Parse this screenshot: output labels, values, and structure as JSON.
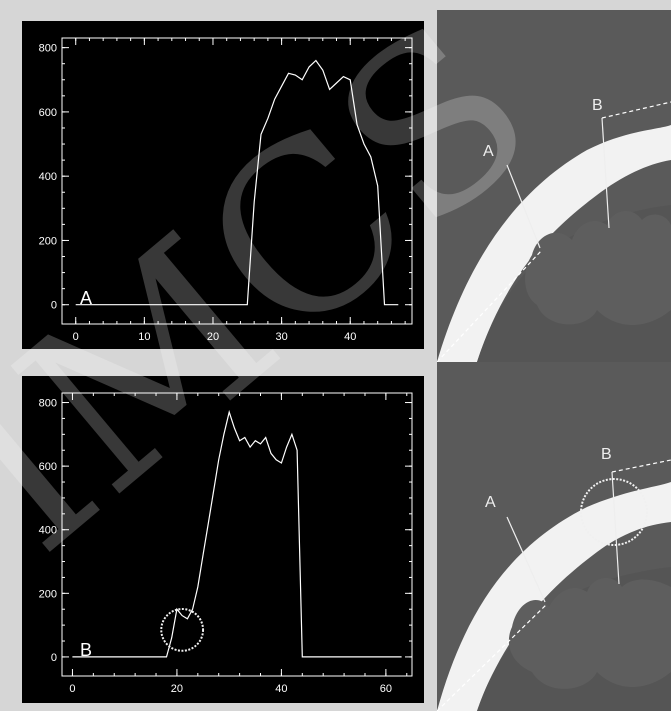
{
  "chart_data": [
    {
      "type": "line",
      "panel_label": "A",
      "xlim": [
        -2,
        49
      ],
      "ylim": [
        -60,
        830
      ],
      "x_ticks": [
        0,
        10,
        20,
        30,
        40
      ],
      "y_ticks": [
        0,
        200,
        400,
        600,
        800
      ],
      "x_tick_labels": [
        "0",
        "10",
        "20",
        "30",
        "40"
      ],
      "y_tick_labels": [
        "0",
        "200",
        "400",
        "600",
        "800"
      ],
      "line_color": "#ffffff",
      "series": [
        {
          "x": [
            0,
            25,
            26,
            27,
            28,
            29,
            30,
            31,
            32,
            33,
            34,
            35,
            36,
            37,
            38,
            39,
            40,
            41,
            42,
            43,
            44,
            45,
            47
          ],
          "y": [
            0,
            0,
            320,
            530,
            580,
            640,
            680,
            720,
            715,
            700,
            740,
            760,
            730,
            670,
            690,
            710,
            700,
            560,
            500,
            460,
            370,
            0,
            0
          ]
        }
      ]
    },
    {
      "type": "line",
      "panel_label": "B",
      "xlim": [
        -2,
        65
      ],
      "ylim": [
        -60,
        830
      ],
      "x_ticks": [
        0,
        20,
        40,
        60
      ],
      "y_ticks": [
        0,
        200,
        400,
        600,
        800
      ],
      "x_tick_labels": [
        "0",
        "20",
        "40",
        "60"
      ],
      "y_tick_labels": [
        "0",
        "200",
        "400",
        "600",
        "800"
      ],
      "line_color": "#ffffff",
      "highlight_circle": {
        "cx": 21,
        "cy": 85,
        "r_x": 4
      },
      "series": [
        {
          "x": [
            0,
            18,
            19,
            20,
            21,
            22,
            23,
            24,
            25,
            26,
            27,
            28,
            29,
            30,
            31,
            32,
            33,
            34,
            35,
            36,
            37,
            38,
            39,
            40,
            41,
            42,
            43,
            44,
            63
          ],
          "y": [
            0,
            0,
            60,
            150,
            130,
            120,
            150,
            220,
            320,
            420,
            520,
            620,
            700,
            770,
            720,
            680,
            690,
            660,
            680,
            670,
            690,
            640,
            620,
            610,
            660,
            700,
            650,
            0,
            0
          ]
        }
      ]
    }
  ],
  "images": {
    "top": {
      "label_a": "A",
      "label_b": "B"
    },
    "bottom": {
      "label_a": "A",
      "label_b": "B"
    }
  },
  "colors": {
    "background": "#d6d6d6",
    "plot_bg": "#000000",
    "line": "#ffffff",
    "image_bg": "#555555",
    "bone": "#ffffff"
  },
  "watermark": "IMCS"
}
